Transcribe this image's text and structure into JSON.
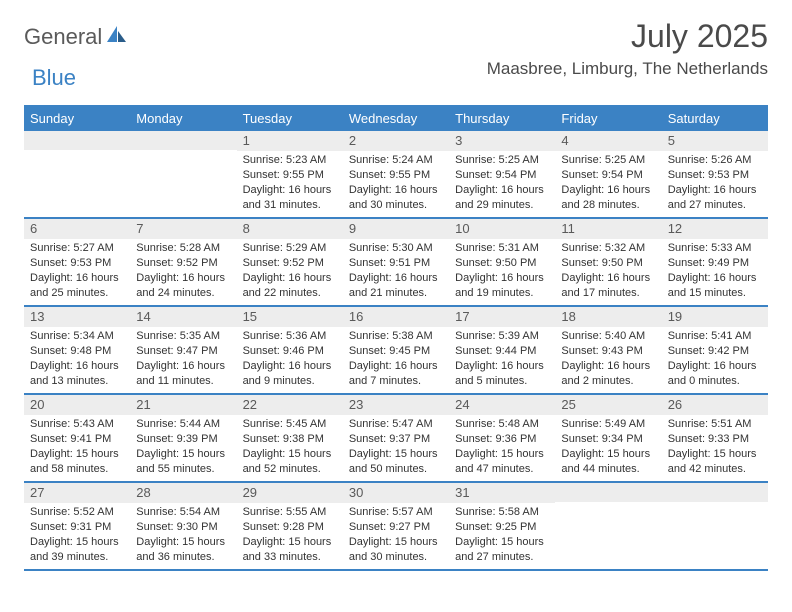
{
  "logo": {
    "part1": "General",
    "part2": "Blue"
  },
  "title": "July 2025",
  "location": "Maasbree, Limburg, The Netherlands",
  "colors": {
    "accent": "#3b82c4",
    "daynum_bg": "#ededed",
    "text": "#333333",
    "header_text": "#ffffff"
  },
  "day_headers": [
    "Sunday",
    "Monday",
    "Tuesday",
    "Wednesday",
    "Thursday",
    "Friday",
    "Saturday"
  ],
  "weeks": [
    [
      {
        "n": "",
        "sr": "",
        "ss": "",
        "dl": ""
      },
      {
        "n": "",
        "sr": "",
        "ss": "",
        "dl": ""
      },
      {
        "n": "1",
        "sr": "Sunrise: 5:23 AM",
        "ss": "Sunset: 9:55 PM",
        "dl": "Daylight: 16 hours and 31 minutes."
      },
      {
        "n": "2",
        "sr": "Sunrise: 5:24 AM",
        "ss": "Sunset: 9:55 PM",
        "dl": "Daylight: 16 hours and 30 minutes."
      },
      {
        "n": "3",
        "sr": "Sunrise: 5:25 AM",
        "ss": "Sunset: 9:54 PM",
        "dl": "Daylight: 16 hours and 29 minutes."
      },
      {
        "n": "4",
        "sr": "Sunrise: 5:25 AM",
        "ss": "Sunset: 9:54 PM",
        "dl": "Daylight: 16 hours and 28 minutes."
      },
      {
        "n": "5",
        "sr": "Sunrise: 5:26 AM",
        "ss": "Sunset: 9:53 PM",
        "dl": "Daylight: 16 hours and 27 minutes."
      }
    ],
    [
      {
        "n": "6",
        "sr": "Sunrise: 5:27 AM",
        "ss": "Sunset: 9:53 PM",
        "dl": "Daylight: 16 hours and 25 minutes."
      },
      {
        "n": "7",
        "sr": "Sunrise: 5:28 AM",
        "ss": "Sunset: 9:52 PM",
        "dl": "Daylight: 16 hours and 24 minutes."
      },
      {
        "n": "8",
        "sr": "Sunrise: 5:29 AM",
        "ss": "Sunset: 9:52 PM",
        "dl": "Daylight: 16 hours and 22 minutes."
      },
      {
        "n": "9",
        "sr": "Sunrise: 5:30 AM",
        "ss": "Sunset: 9:51 PM",
        "dl": "Daylight: 16 hours and 21 minutes."
      },
      {
        "n": "10",
        "sr": "Sunrise: 5:31 AM",
        "ss": "Sunset: 9:50 PM",
        "dl": "Daylight: 16 hours and 19 minutes."
      },
      {
        "n": "11",
        "sr": "Sunrise: 5:32 AM",
        "ss": "Sunset: 9:50 PM",
        "dl": "Daylight: 16 hours and 17 minutes."
      },
      {
        "n": "12",
        "sr": "Sunrise: 5:33 AM",
        "ss": "Sunset: 9:49 PM",
        "dl": "Daylight: 16 hours and 15 minutes."
      }
    ],
    [
      {
        "n": "13",
        "sr": "Sunrise: 5:34 AM",
        "ss": "Sunset: 9:48 PM",
        "dl": "Daylight: 16 hours and 13 minutes."
      },
      {
        "n": "14",
        "sr": "Sunrise: 5:35 AM",
        "ss": "Sunset: 9:47 PM",
        "dl": "Daylight: 16 hours and 11 minutes."
      },
      {
        "n": "15",
        "sr": "Sunrise: 5:36 AM",
        "ss": "Sunset: 9:46 PM",
        "dl": "Daylight: 16 hours and 9 minutes."
      },
      {
        "n": "16",
        "sr": "Sunrise: 5:38 AM",
        "ss": "Sunset: 9:45 PM",
        "dl": "Daylight: 16 hours and 7 minutes."
      },
      {
        "n": "17",
        "sr": "Sunrise: 5:39 AM",
        "ss": "Sunset: 9:44 PM",
        "dl": "Daylight: 16 hours and 5 minutes."
      },
      {
        "n": "18",
        "sr": "Sunrise: 5:40 AM",
        "ss": "Sunset: 9:43 PM",
        "dl": "Daylight: 16 hours and 2 minutes."
      },
      {
        "n": "19",
        "sr": "Sunrise: 5:41 AM",
        "ss": "Sunset: 9:42 PM",
        "dl": "Daylight: 16 hours and 0 minutes."
      }
    ],
    [
      {
        "n": "20",
        "sr": "Sunrise: 5:43 AM",
        "ss": "Sunset: 9:41 PM",
        "dl": "Daylight: 15 hours and 58 minutes."
      },
      {
        "n": "21",
        "sr": "Sunrise: 5:44 AM",
        "ss": "Sunset: 9:39 PM",
        "dl": "Daylight: 15 hours and 55 minutes."
      },
      {
        "n": "22",
        "sr": "Sunrise: 5:45 AM",
        "ss": "Sunset: 9:38 PM",
        "dl": "Daylight: 15 hours and 52 minutes."
      },
      {
        "n": "23",
        "sr": "Sunrise: 5:47 AM",
        "ss": "Sunset: 9:37 PM",
        "dl": "Daylight: 15 hours and 50 minutes."
      },
      {
        "n": "24",
        "sr": "Sunrise: 5:48 AM",
        "ss": "Sunset: 9:36 PM",
        "dl": "Daylight: 15 hours and 47 minutes."
      },
      {
        "n": "25",
        "sr": "Sunrise: 5:49 AM",
        "ss": "Sunset: 9:34 PM",
        "dl": "Daylight: 15 hours and 44 minutes."
      },
      {
        "n": "26",
        "sr": "Sunrise: 5:51 AM",
        "ss": "Sunset: 9:33 PM",
        "dl": "Daylight: 15 hours and 42 minutes."
      }
    ],
    [
      {
        "n": "27",
        "sr": "Sunrise: 5:52 AM",
        "ss": "Sunset: 9:31 PM",
        "dl": "Daylight: 15 hours and 39 minutes."
      },
      {
        "n": "28",
        "sr": "Sunrise: 5:54 AM",
        "ss": "Sunset: 9:30 PM",
        "dl": "Daylight: 15 hours and 36 minutes."
      },
      {
        "n": "29",
        "sr": "Sunrise: 5:55 AM",
        "ss": "Sunset: 9:28 PM",
        "dl": "Daylight: 15 hours and 33 minutes."
      },
      {
        "n": "30",
        "sr": "Sunrise: 5:57 AM",
        "ss": "Sunset: 9:27 PM",
        "dl": "Daylight: 15 hours and 30 minutes."
      },
      {
        "n": "31",
        "sr": "Sunrise: 5:58 AM",
        "ss": "Sunset: 9:25 PM",
        "dl": "Daylight: 15 hours and 27 minutes."
      },
      {
        "n": "",
        "sr": "",
        "ss": "",
        "dl": ""
      },
      {
        "n": "",
        "sr": "",
        "ss": "",
        "dl": ""
      }
    ]
  ]
}
